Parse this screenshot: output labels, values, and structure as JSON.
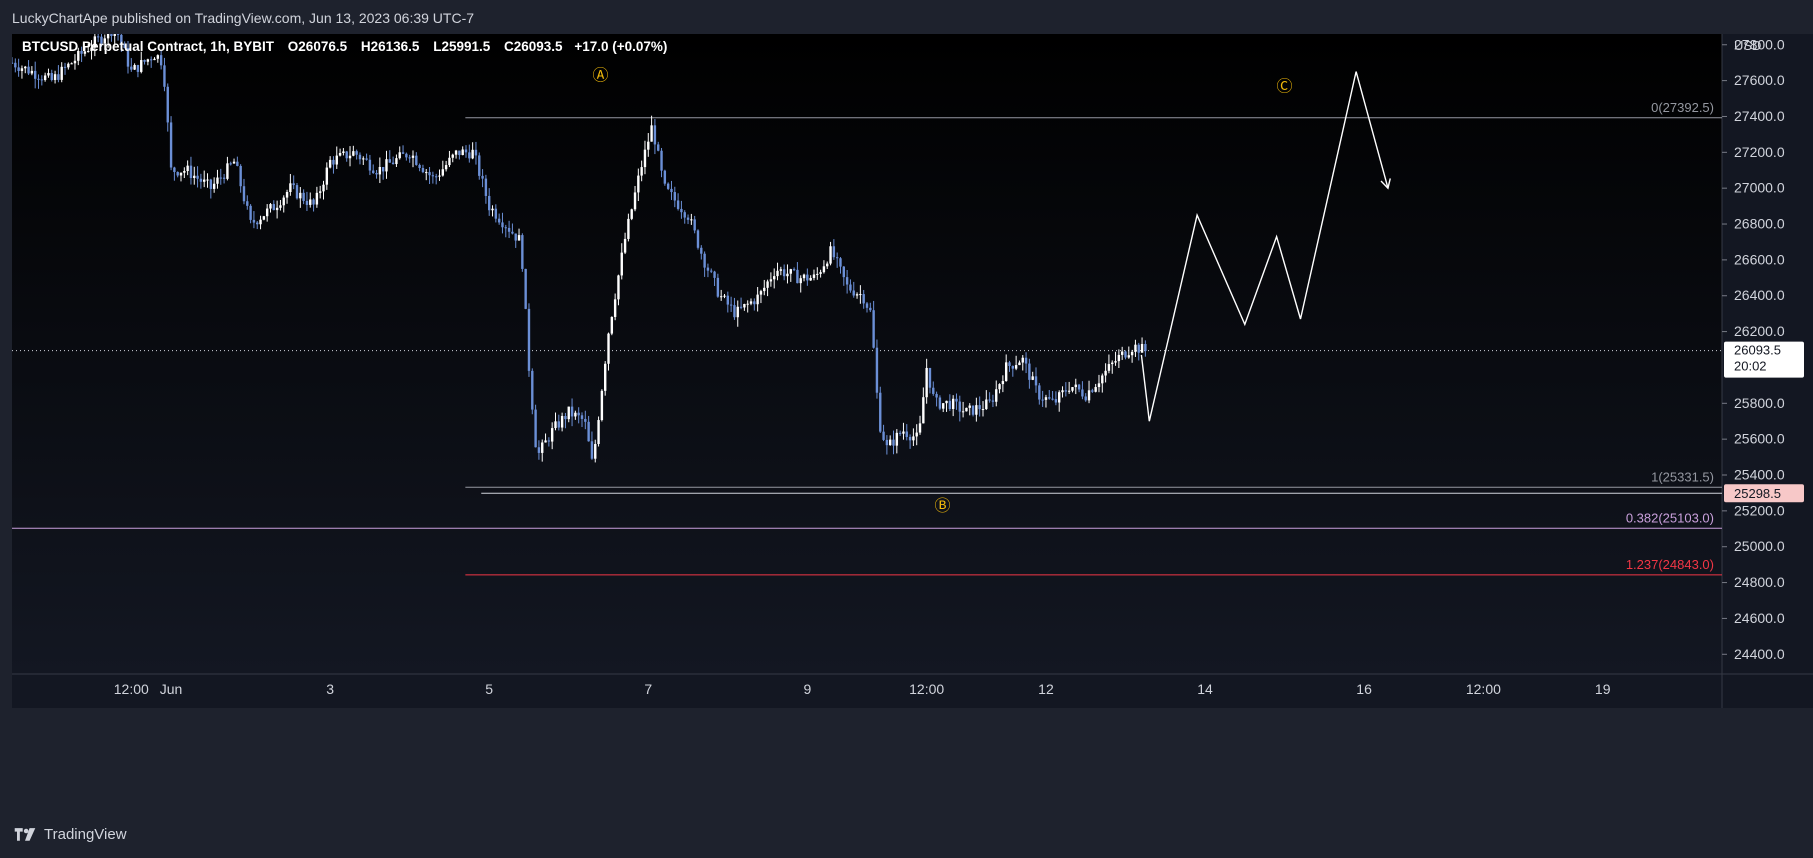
{
  "header": {
    "publisher_text": "LuckyChartApe published on TradingView.com, Jun 13, 2023 06:39 UTC-7"
  },
  "footer": {
    "brand": "TradingView"
  },
  "colors": {
    "background_top": "#000000",
    "background_bottom": "#131722",
    "frame": "#1e222d",
    "candle_up": "#ffffff",
    "candle_down": "#6b8fd6",
    "fib_gray": "#9598a1",
    "fib_pink": "#c9a0dc",
    "fib_red": "#f23645",
    "wave_label": "#f0b90b",
    "projection": "#ffffff",
    "last_price_bg": "#ffffff",
    "b_level_bg": "#f7c8c8"
  },
  "chart_data": {
    "type": "candlestick",
    "symbol_line": "BTCUSD Perpetual Contract, 1h, BYBIT",
    "ohlc": {
      "open": "O26076.5",
      "high": "H26136.5",
      "low": "L25991.5",
      "close": "C26093.5",
      "change": "+17.0 (+0.07%)"
    },
    "currency": "USD",
    "y_axis": {
      "ticks": [
        24400,
        24600,
        24800,
        25000,
        25200,
        25400,
        25600,
        25800,
        26200,
        26400,
        26600,
        26800,
        27000,
        27200,
        27400,
        27600,
        27800
      ],
      "tick_labels": [
        "24400.0",
        "24600.0",
        "24800.0",
        "25000.0",
        "25200.0",
        "25400.0",
        "25600.0",
        "25800.0",
        "26200.0",
        "26400.0",
        "26600.0",
        "26800.0",
        "27000.0",
        "27200.0",
        "27400.0",
        "27600.0",
        "27800.0"
      ],
      "range": [
        24290,
        27860
      ]
    },
    "x_axis": {
      "tick_labels": [
        "12:00",
        "Jun",
        "3",
        "5",
        "7",
        "9",
        "12:00",
        "12",
        "14",
        "16",
        "12:00",
        "19"
      ],
      "tick_days": [
        0.5,
        1,
        3,
        5,
        7,
        9,
        10.5,
        12,
        14,
        16,
        17.5,
        19
      ],
      "range_days": [
        -1,
        20.5
      ],
      "unit": "days since May 31 00:00"
    },
    "last_price": {
      "value": 26093.5,
      "label": "26093.5",
      "countdown": "20:02"
    },
    "b_level": {
      "value": 25298.5,
      "label": "25298.5"
    },
    "fib_levels": [
      {
        "ratio_label": "0(27392.5)",
        "value": 27392.5,
        "color": "#9598a1",
        "start_day": 4.7
      },
      {
        "ratio_label": "1(25331.5)",
        "value": 25331.5,
        "color": "#9598a1",
        "start_day": 4.7
      },
      {
        "ratio_label": "0.382(25103.0)",
        "value": 25103.0,
        "color": "#c9a0dc",
        "start_day": -1
      },
      {
        "ratio_label": "1.237(24843.0)",
        "value": 24843.0,
        "color": "#f23645",
        "start_day": 4.7
      }
    ],
    "wave_labels": [
      {
        "text": "Ⓐ",
        "day": 6.4,
        "value": 27600
      },
      {
        "text": "Ⓑ",
        "day": 10.7,
        "value": 25200
      },
      {
        "text": "Ⓒ",
        "day": 15.0,
        "value": 27540
      }
    ],
    "projection_path": [
      {
        "day": 13.2,
        "value": 26070
      },
      {
        "day": 13.3,
        "value": 25700
      },
      {
        "day": 13.9,
        "value": 26850
      },
      {
        "day": 14.5,
        "value": 26240
      },
      {
        "day": 14.9,
        "value": 26730
      },
      {
        "day": 15.2,
        "value": 26270
      },
      {
        "day": 15.9,
        "value": 27650
      },
      {
        "day": 16.3,
        "value": 27000
      }
    ],
    "price_path": [
      {
        "day": -1.0,
        "value": 27700
      },
      {
        "day": -0.5,
        "value": 27600
      },
      {
        "day": 0.0,
        "value": 27800
      },
      {
        "day": 0.3,
        "value": 27900
      },
      {
        "day": 0.5,
        "value": 27650
      },
      {
        "day": 0.8,
        "value": 27750
      },
      {
        "day": 0.9,
        "value": 27700
      },
      {
        "day": 1.0,
        "value": 27100
      },
      {
        "day": 1.2,
        "value": 27100
      },
      {
        "day": 1.5,
        "value": 27000
      },
      {
        "day": 1.8,
        "value": 27150
      },
      {
        "day": 2.0,
        "value": 26800
      },
      {
        "day": 2.3,
        "value": 26900
      },
      {
        "day": 2.5,
        "value": 27000
      },
      {
        "day": 2.8,
        "value": 26900
      },
      {
        "day": 3.0,
        "value": 27150
      },
      {
        "day": 3.3,
        "value": 27200
      },
      {
        "day": 3.6,
        "value": 27100
      },
      {
        "day": 4.0,
        "value": 27200
      },
      {
        "day": 4.3,
        "value": 27050
      },
      {
        "day": 4.6,
        "value": 27200
      },
      {
        "day": 4.8,
        "value": 27200
      },
      {
        "day": 5.0,
        "value": 26900
      },
      {
        "day": 5.3,
        "value": 26750
      },
      {
        "day": 5.4,
        "value": 26700
      },
      {
        "day": 5.5,
        "value": 26000
      },
      {
        "day": 5.6,
        "value": 25500
      },
      {
        "day": 5.8,
        "value": 25650
      },
      {
        "day": 6.0,
        "value": 25750
      },
      {
        "day": 6.2,
        "value": 25700
      },
      {
        "day": 6.3,
        "value": 25450
      },
      {
        "day": 6.5,
        "value": 26200
      },
      {
        "day": 6.7,
        "value": 26700
      },
      {
        "day": 6.9,
        "value": 27100
      },
      {
        "day": 7.05,
        "value": 27350
      },
      {
        "day": 7.2,
        "value": 27000
      },
      {
        "day": 7.5,
        "value": 26850
      },
      {
        "day": 7.7,
        "value": 26600
      },
      {
        "day": 7.9,
        "value": 26400
      },
      {
        "day": 8.1,
        "value": 26300
      },
      {
        "day": 8.4,
        "value": 26400
      },
      {
        "day": 8.6,
        "value": 26550
      },
      {
        "day": 8.9,
        "value": 26500
      },
      {
        "day": 9.1,
        "value": 26500
      },
      {
        "day": 9.3,
        "value": 26650
      },
      {
        "day": 9.5,
        "value": 26450
      },
      {
        "day": 9.7,
        "value": 26400
      },
      {
        "day": 9.8,
        "value": 26300
      },
      {
        "day": 9.9,
        "value": 25700
      },
      {
        "day": 10.0,
        "value": 25550
      },
      {
        "day": 10.2,
        "value": 25650
      },
      {
        "day": 10.4,
        "value": 25600
      },
      {
        "day": 10.5,
        "value": 26000
      },
      {
        "day": 10.6,
        "value": 25800
      },
      {
        "day": 10.8,
        "value": 25800
      },
      {
        "day": 11.0,
        "value": 25750
      },
      {
        "day": 11.3,
        "value": 25800
      },
      {
        "day": 11.5,
        "value": 26000
      },
      {
        "day": 11.7,
        "value": 26050
      },
      {
        "day": 11.9,
        "value": 25850
      },
      {
        "day": 12.1,
        "value": 25800
      },
      {
        "day": 12.3,
        "value": 25900
      },
      {
        "day": 12.5,
        "value": 25850
      },
      {
        "day": 12.7,
        "value": 25950
      },
      {
        "day": 12.9,
        "value": 26050
      },
      {
        "day": 13.1,
        "value": 26120
      },
      {
        "day": 13.25,
        "value": 26093
      }
    ]
  }
}
